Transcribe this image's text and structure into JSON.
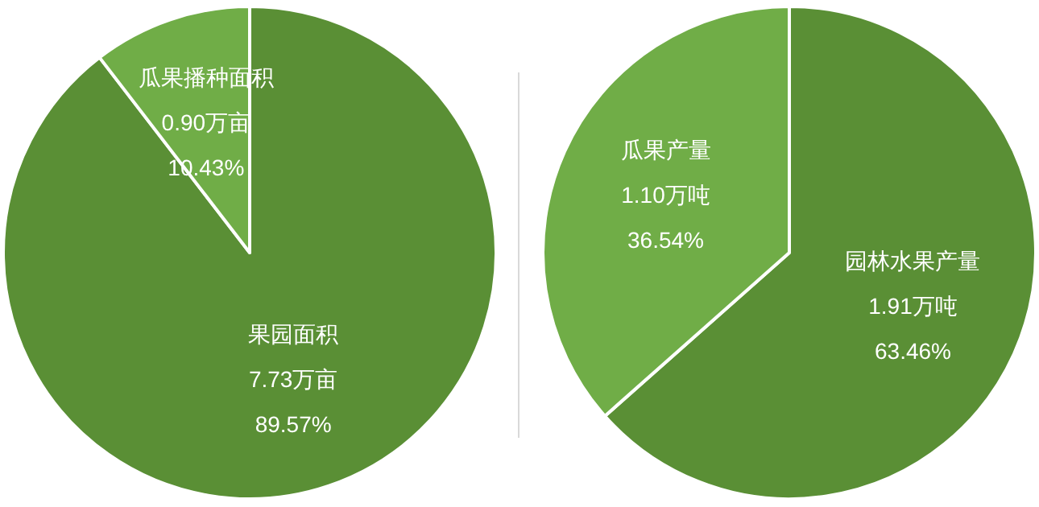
{
  "chart_data": [
    {
      "type": "pie",
      "categories": [
        "果园面积",
        "瓜果播种面积"
      ],
      "values": [
        7.73,
        0.9
      ],
      "colors": [
        "#5a8f35",
        "#70ad47"
      ],
      "value_labels": [
        "7.73万亩\n89.57%",
        "0.90万亩\n10.43%"
      ]
    },
    {
      "type": "pie",
      "categories": [
        "园林水果产量",
        "瓜果产量"
      ],
      "values": [
        1.91,
        1.1
      ],
      "colors": [
        "#5a8f35",
        "#70ad47"
      ],
      "value_labels": [
        "1.91万吨\n63.46%",
        "1.10万吨\n36.54%"
      ]
    }
  ]
}
